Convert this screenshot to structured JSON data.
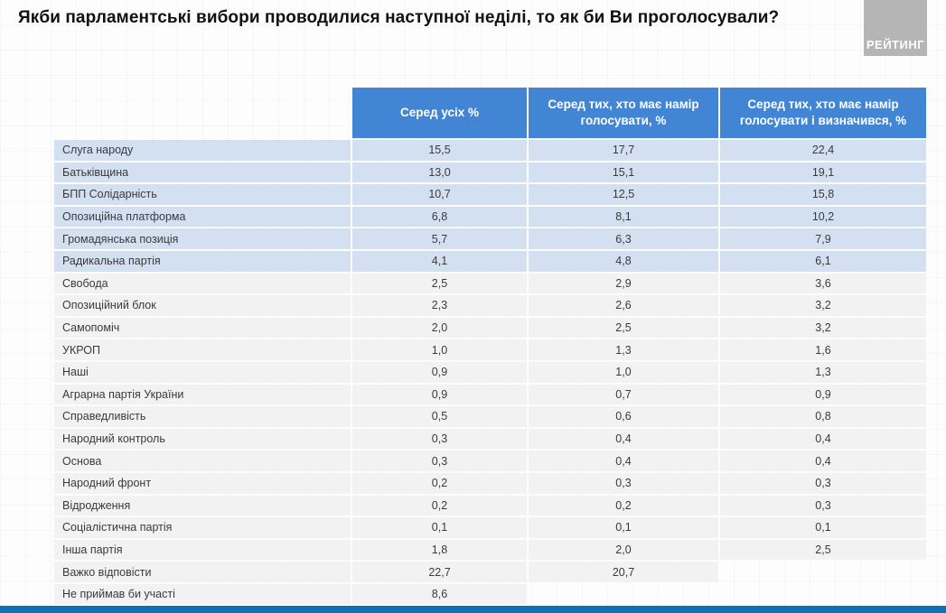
{
  "title": "Якби парламентські вибори проводилися наступної неділі, то як би Ви проголосували?",
  "logo": {
    "text": "РЕЙТИНГ"
  },
  "colors": {
    "header_blue": "#4285d5",
    "row_highlight_blue": "#d3e0f1",
    "row_gray": "#f2f2f2",
    "bottom_bar_blue": "#0d71b8",
    "logo_gray": "#b5b5b5"
  },
  "table": {
    "columns": [
      "Серед усіх %",
      "Серед тих, хто має намір голосувати, %",
      "Серед тих, хто має намір голосувати і визначився, %"
    ],
    "rows": [
      {
        "party": "Слуга народу",
        "all": "15,5",
        "intend": "17,7",
        "decided": "22,4",
        "highlight": true
      },
      {
        "party": "Батьківщина",
        "all": "13,0",
        "intend": "15,1",
        "decided": "19,1",
        "highlight": true
      },
      {
        "party": "БПП Солідарність",
        "all": "10,7",
        "intend": "12,5",
        "decided": "15,8",
        "highlight": true
      },
      {
        "party": "Опозиційна платформа",
        "all": "6,8",
        "intend": "8,1",
        "decided": "10,2",
        "highlight": true
      },
      {
        "party": "Громадянська позиція",
        "all": "5,7",
        "intend": "6,3",
        "decided": "7,9",
        "highlight": true
      },
      {
        "party": "Радикальна партія",
        "all": "4,1",
        "intend": "4,8",
        "decided": "6,1",
        "highlight": true
      },
      {
        "party": "Свобода",
        "all": "2,5",
        "intend": "2,9",
        "decided": "3,6",
        "highlight": false
      },
      {
        "party": "Опозиційний блок",
        "all": "2,3",
        "intend": "2,6",
        "decided": "3,2",
        "highlight": false
      },
      {
        "party": "Самопоміч",
        "all": "2,0",
        "intend": "2,5",
        "decided": "3,2",
        "highlight": false
      },
      {
        "party": "УКРОП",
        "all": "1,0",
        "intend": "1,3",
        "decided": "1,6",
        "highlight": false
      },
      {
        "party": "Наші",
        "all": "0,9",
        "intend": "1,0",
        "decided": "1,3",
        "highlight": false
      },
      {
        "party": "Аграрна партія України",
        "all": "0,9",
        "intend": "0,7",
        "decided": "0,9",
        "highlight": false
      },
      {
        "party": "Справедливість",
        "all": "0,5",
        "intend": "0,6",
        "decided": "0,8",
        "highlight": false
      },
      {
        "party": "Народний контроль",
        "all": "0,3",
        "intend": "0,4",
        "decided": "0,4",
        "highlight": false
      },
      {
        "party": "Основа",
        "all": "0,3",
        "intend": "0,4",
        "decided": "0,4",
        "highlight": false
      },
      {
        "party": "Народний фронт",
        "all": "0,2",
        "intend": "0,3",
        "decided": "0,3",
        "highlight": false
      },
      {
        "party": "Відродження",
        "all": "0,2",
        "intend": "0,2",
        "decided": "0,3",
        "highlight": false
      },
      {
        "party": "Соціалістична партія",
        "all": "0,1",
        "intend": "0,1",
        "decided": "0,1",
        "highlight": false
      },
      {
        "party": "Інша партія",
        "all": "1,8",
        "intend": "2,0",
        "decided": "2,5",
        "highlight": false
      },
      {
        "party": "Важко відповісти",
        "all": "22,7",
        "intend": "20,7",
        "decided": "",
        "highlight": false
      },
      {
        "party": "Не приймав би участі",
        "all": "8,6",
        "intend": "",
        "decided": "",
        "highlight": false
      }
    ]
  },
  "chart_data": {
    "type": "table",
    "title": "Якби парламентські вибори проводилися наступної неділі, то як би Ви проголосували?",
    "source_logo": "РЕЙТИНГ",
    "categories": [
      "Слуга народу",
      "Батьківщина",
      "БПП Солідарність",
      "Опозиційна платформа",
      "Громадянська позиція",
      "Радикальна партія",
      "Свобода",
      "Опозиційний блок",
      "Самопоміч",
      "УКРОП",
      "Наші",
      "Аграрна партія України",
      "Справедливість",
      "Народний контроль",
      "Основа",
      "Народний фронт",
      "Відродження",
      "Соціалістична партія",
      "Інша партія",
      "Важко відповісти",
      "Не приймав би участі"
    ],
    "series": [
      {
        "name": "Серед усіх %",
        "values": [
          15.5,
          13.0,
          10.7,
          6.8,
          5.7,
          4.1,
          2.5,
          2.3,
          2.0,
          1.0,
          0.9,
          0.9,
          0.5,
          0.3,
          0.3,
          0.2,
          0.2,
          0.1,
          1.8,
          22.7,
          8.6
        ]
      },
      {
        "name": "Серед тих, хто має намір голосувати, %",
        "values": [
          17.7,
          15.1,
          12.5,
          8.1,
          6.3,
          4.8,
          2.9,
          2.6,
          2.5,
          1.3,
          1.0,
          0.7,
          0.6,
          0.4,
          0.4,
          0.3,
          0.2,
          0.1,
          2.0,
          20.7,
          null
        ]
      },
      {
        "name": "Серед тих, хто має намір голосувати і визначився, %",
        "values": [
          22.4,
          19.1,
          15.8,
          10.2,
          7.9,
          6.1,
          3.6,
          3.2,
          3.2,
          1.6,
          1.3,
          0.9,
          0.8,
          0.4,
          0.4,
          0.3,
          0.3,
          0.1,
          2.5,
          null,
          null
        ]
      }
    ],
    "layout_hints": {
      "highlighted_rows": [
        "Слуга народу",
        "Батьківщина",
        "БПП Солідарність",
        "Опозиційна платформа",
        "Громадянська позиція",
        "Радикальна партія"
      ],
      "grid": false,
      "legend_position": "column headers"
    }
  }
}
